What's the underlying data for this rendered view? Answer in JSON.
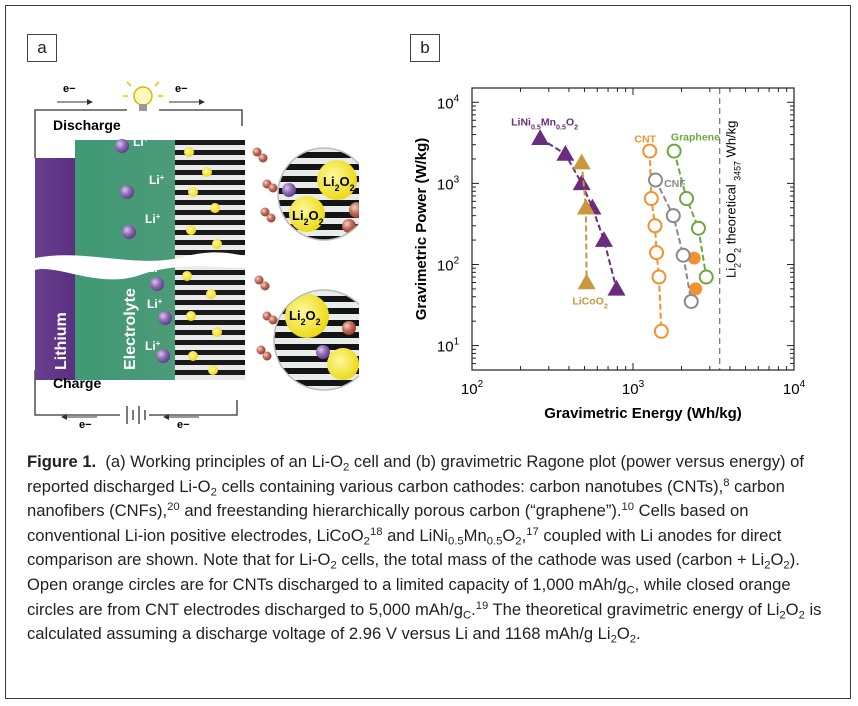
{
  "panel_a": {
    "label": "a",
    "discharge": "Discharge",
    "charge": "Charge",
    "electron": "e−",
    "lithium": "Lithium",
    "electrolyte": "Electrolyte",
    "li_ion": "Li+",
    "li2o2": "Li2O2"
  },
  "panel_b": {
    "label": "b",
    "theoretical_annotation": "Li2O2 theoretical  3457 Wh/kg"
  },
  "chart_data": {
    "type": "scatter",
    "xlabel": "Gravimetric Energy (Wh/kg)",
    "ylabel": "Gravimetric Power (W/kg)",
    "xscale": "log",
    "yscale": "log",
    "xlim": [
      100,
      10000
    ],
    "ylim": [
      5,
      15000
    ],
    "x_ticks": [
      "10^2",
      "10^3",
      "10^4"
    ],
    "y_ticks": [
      "10^1",
      "10^2",
      "10^3",
      "10^4"
    ],
    "grid": false,
    "theoretical_energy": 3457,
    "series": [
      {
        "name": "LiNi0.5Mn0.5O2",
        "marker": "filled-triangle",
        "color": "#6b2c7e",
        "points": [
          [
            265,
            3600
          ],
          [
            380,
            2300
          ],
          [
            480,
            1000
          ],
          [
            560,
            500
          ],
          [
            660,
            200
          ],
          [
            790,
            50
          ]
        ]
      },
      {
        "name": "LiCoO2",
        "marker": "filled-triangle",
        "color": "#c9973e",
        "points": [
          [
            480,
            1800
          ],
          [
            510,
            500
          ],
          [
            515,
            60
          ]
        ]
      },
      {
        "name": "CNT",
        "marker": "open-circle",
        "color": "#f0922f",
        "points": [
          [
            1270,
            2500
          ],
          [
            1300,
            650
          ],
          [
            1370,
            300
          ],
          [
            1400,
            140
          ],
          [
            1450,
            70
          ],
          [
            1500,
            15
          ]
        ]
      },
      {
        "name": "CNT (5,000 mAh/gC)",
        "marker": "filled-circle",
        "color": "#f0922f",
        "points": [
          [
            2400,
            120
          ],
          [
            2450,
            50
          ]
        ]
      },
      {
        "name": "CNF",
        "marker": "open-circle",
        "color": "#8a8a8a",
        "points": [
          [
            1380,
            1100
          ],
          [
            1780,
            400
          ],
          [
            2050,
            130
          ],
          [
            2300,
            35
          ]
        ]
      },
      {
        "name": "Graphene",
        "marker": "open-circle",
        "color": "#6ea83d",
        "points": [
          [
            1800,
            2500
          ],
          [
            2150,
            650
          ],
          [
            2550,
            280
          ],
          [
            2850,
            70
          ]
        ]
      }
    ],
    "annotations": [
      "LiNi0.5Mn0.5O2",
      "LiCoO2",
      "CNT",
      "CNF",
      "Graphene"
    ]
  },
  "caption": {
    "figure_label": "Figure 1.",
    "html": "(a) Working principles of an Li-O<sub>2</sub> cell and (b) gravimetric Ragone plot (power versus energy) of reported discharged Li-O<sub>2</sub> cells containing various carbon cathodes: carbon nanotubes (CNTs),<sup>8</sup> carbon nanofibers (CNFs),<sup>20</sup> and freestanding hierarchically porous carbon (“graphene”).<sup>10</sup> Cells based on conventional Li-ion positive electrodes, LiCoO<sub>2</sub><sup>18</sup> and LiNi<sub>0.5</sub>Mn<sub>0.5</sub>O<sub>2</sub>,<sup>17</sup> coupled with Li anodes for direct comparison are shown. Note that for Li-O<sub>2</sub> cells, the total mass of the cathode was used (carbon + Li<sub>2</sub>O<sub>2</sub>). Open orange circles are for CNTs discharged to a limited capacity of 1,000 mAh/g<sub>C</sub>, while closed orange circles are from CNT electrodes discharged to 5,000 mAh/g<sub>C</sub>.<sup>19</sup> The theoretical gravimetric energy of Li<sub>2</sub>O<sub>2</sub> is calculated assuming a discharge voltage of 2.96 V versus Li and 1168 mAh/g Li<sub>2</sub>O<sub>2</sub>."
  }
}
